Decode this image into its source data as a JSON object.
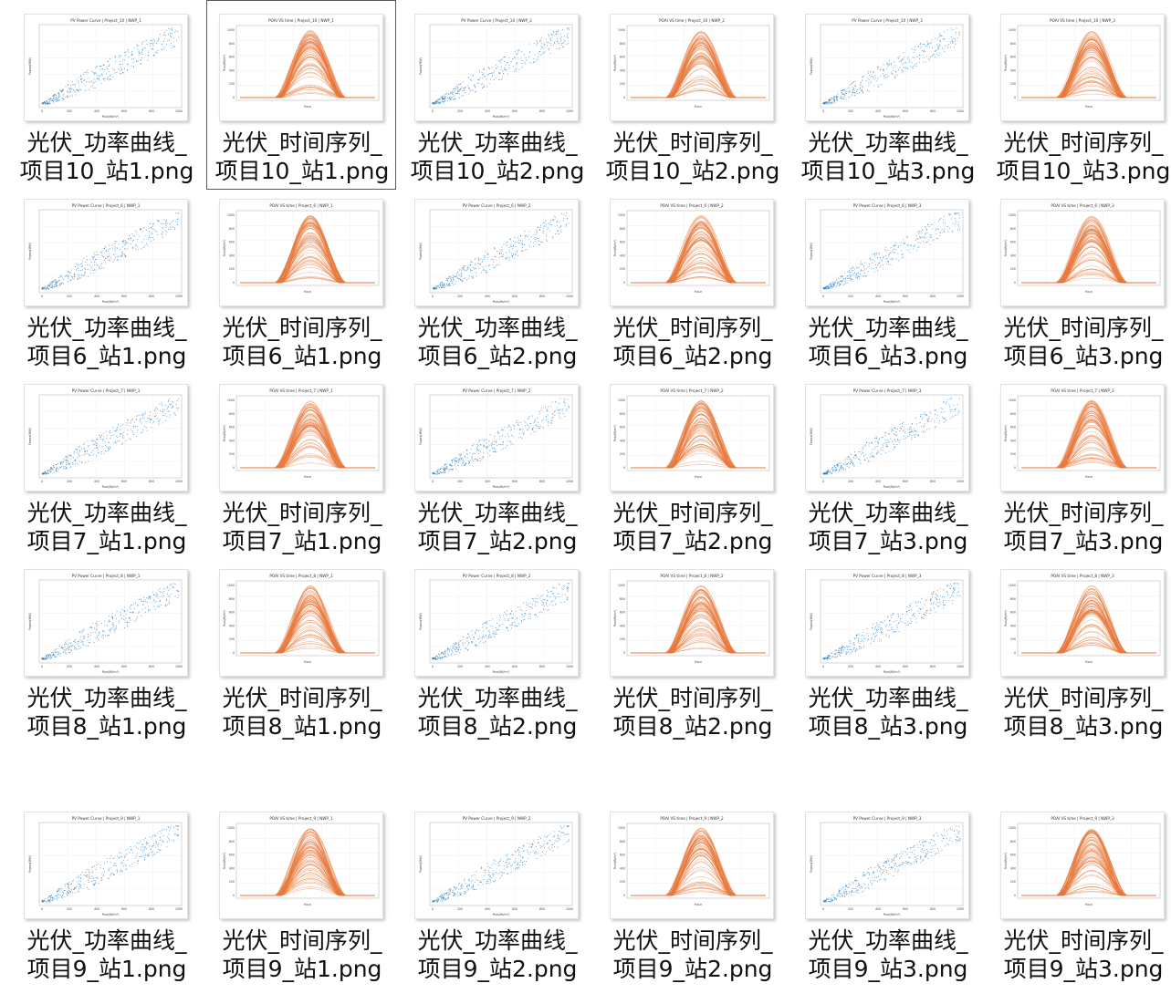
{
  "files": [
    {
      "name": "光伏_功率曲线_\n项目10_站1.png",
      "kind": "power",
      "title": "PV Power Curve | Project_10 | NWP_1"
    },
    {
      "name": "光伏_时间序列_\n项目10_站1.png",
      "kind": "time",
      "title": "POAI VS time | Project_10 | NWP_1",
      "selected": true
    },
    {
      "name": "光伏_功率曲线_\n项目10_站2.png",
      "kind": "power",
      "title": "PV Power Curve | Project_10 | NWP_2"
    },
    {
      "name": "光伏_时间序列_\n项目10_站2.png",
      "kind": "time",
      "title": "POAI VS time | Project_10 | NWP_2"
    },
    {
      "name": "光伏_功率曲线_\n项目10_站3.png",
      "kind": "power",
      "title": "PV Power Curve | Project_10 | NWP_3"
    },
    {
      "name": "光伏_时间序列_\n项目10_站3.png",
      "kind": "time",
      "title": "POAI VS time | Project_10 | NWP_3"
    },
    {
      "name": "光伏_功率曲线_\n项目6_站1.png",
      "kind": "power",
      "title": "PV Power Curve | Project_6 | NWP_1"
    },
    {
      "name": "光伏_时间序列_\n项目6_站1.png",
      "kind": "time",
      "title": "POAI VS time | Project_6 | NWP_1"
    },
    {
      "name": "光伏_功率曲线_\n项目6_站2.png",
      "kind": "power",
      "title": "PV Power Curve | Project_6 | NWP_2"
    },
    {
      "name": "光伏_时间序列_\n项目6_站2.png",
      "kind": "time",
      "title": "POAI VS time | Project_6 | NWP_2"
    },
    {
      "name": "光伏_功率曲线_\n项目6_站3.png",
      "kind": "power",
      "title": "PV Power Curve | Project_6 | NWP_3"
    },
    {
      "name": "光伏_时间序列_\n项目6_站3.png",
      "kind": "time",
      "title": "POAI VS time | Project_6 | NWP_3"
    },
    {
      "name": "光伏_功率曲线_\n项目7_站1.png",
      "kind": "power",
      "title": "PV Power Curve | Project_7 | NWP_1"
    },
    {
      "name": "光伏_时间序列_\n项目7_站1.png",
      "kind": "time",
      "title": "POAI VS time | Project_7 | NWP_1"
    },
    {
      "name": "光伏_功率曲线_\n项目7_站2.png",
      "kind": "power",
      "title": "PV Power Curve | Project_7 | NWP_2"
    },
    {
      "name": "光伏_时间序列_\n项目7_站2.png",
      "kind": "time",
      "title": "POAI VS time | Project_7 | NWP_2"
    },
    {
      "name": "光伏_功率曲线_\n项目7_站3.png",
      "kind": "power",
      "title": "PV Power Curve | Project_7 | NWP_3"
    },
    {
      "name": "光伏_时间序列_\n项目7_站3.png",
      "kind": "time",
      "title": "POAI VS time | Project_7 | NWP_3"
    },
    {
      "name": "光伏_功率曲线_\n项目8_站1.png",
      "kind": "power",
      "title": "PV Power Curve | Project_8 | NWP_1"
    },
    {
      "name": "光伏_时间序列_\n项目8_站1.png",
      "kind": "time",
      "title": "POAI VS time | Project_8 | NWP_1"
    },
    {
      "name": "光伏_功率曲线_\n项目8_站2.png",
      "kind": "power",
      "title": "PV Power Curve | Project_8 | NWP_2"
    },
    {
      "name": "光伏_时间序列_\n项目8_站2.png",
      "kind": "time",
      "title": "POAI VS time | Project_8 | NWP_2"
    },
    {
      "name": "光伏_功率曲线_\n项目8_站3.png",
      "kind": "power",
      "title": "PV Power Curve | Project_8 | NWP_3"
    },
    {
      "name": "光伏_时间序列_\n项目8_站3.png",
      "kind": "time",
      "title": "POAI VS time | Project_8 | NWP_3"
    },
    {
      "name": "光伏_功率曲线_\n项目9_站1.png",
      "kind": "power",
      "title": "PV Power Curve | Project_9 | NWP_1"
    },
    {
      "name": "光伏_时间序列_\n项目9_站1.png",
      "kind": "time",
      "title": "POAI VS time | Project_9 | NWP_1"
    },
    {
      "name": "光伏_功率曲线_\n项目9_站2.png",
      "kind": "power",
      "title": "PV Power Curve | Project_9 | NWP_2"
    },
    {
      "name": "光伏_时间序列_\n项目9_站2.png",
      "kind": "time",
      "title": "POAI VS time | Project_9 | NWP_2"
    },
    {
      "name": "光伏_功率曲线_\n项目9_站3.png",
      "kind": "power",
      "title": "PV Power Curve | Project_9 | NWP_3"
    },
    {
      "name": "光伏_时间序列_\n项目9_站3.png",
      "kind": "time",
      "title": "POAI VS time | Project_9 | NWP_3"
    }
  ],
  "thumb_labels": {
    "power_xlabel": "Poai(W/m²)",
    "power_ylabel": "Power(MW)",
    "power_xticks": [
      "0",
      "200",
      "400",
      "600",
      "800",
      "1000"
    ],
    "time_xlabel": "Hour",
    "time_ylabel": "Poai(W/m²)",
    "time_yticks": [
      "0",
      "200",
      "400",
      "600",
      "800",
      "1000"
    ]
  },
  "colors": {
    "power_points": "#2f7fc1",
    "time_lines": "#e8783a",
    "selection_border": "#5a5a5a",
    "file_name_text": "#111111"
  }
}
